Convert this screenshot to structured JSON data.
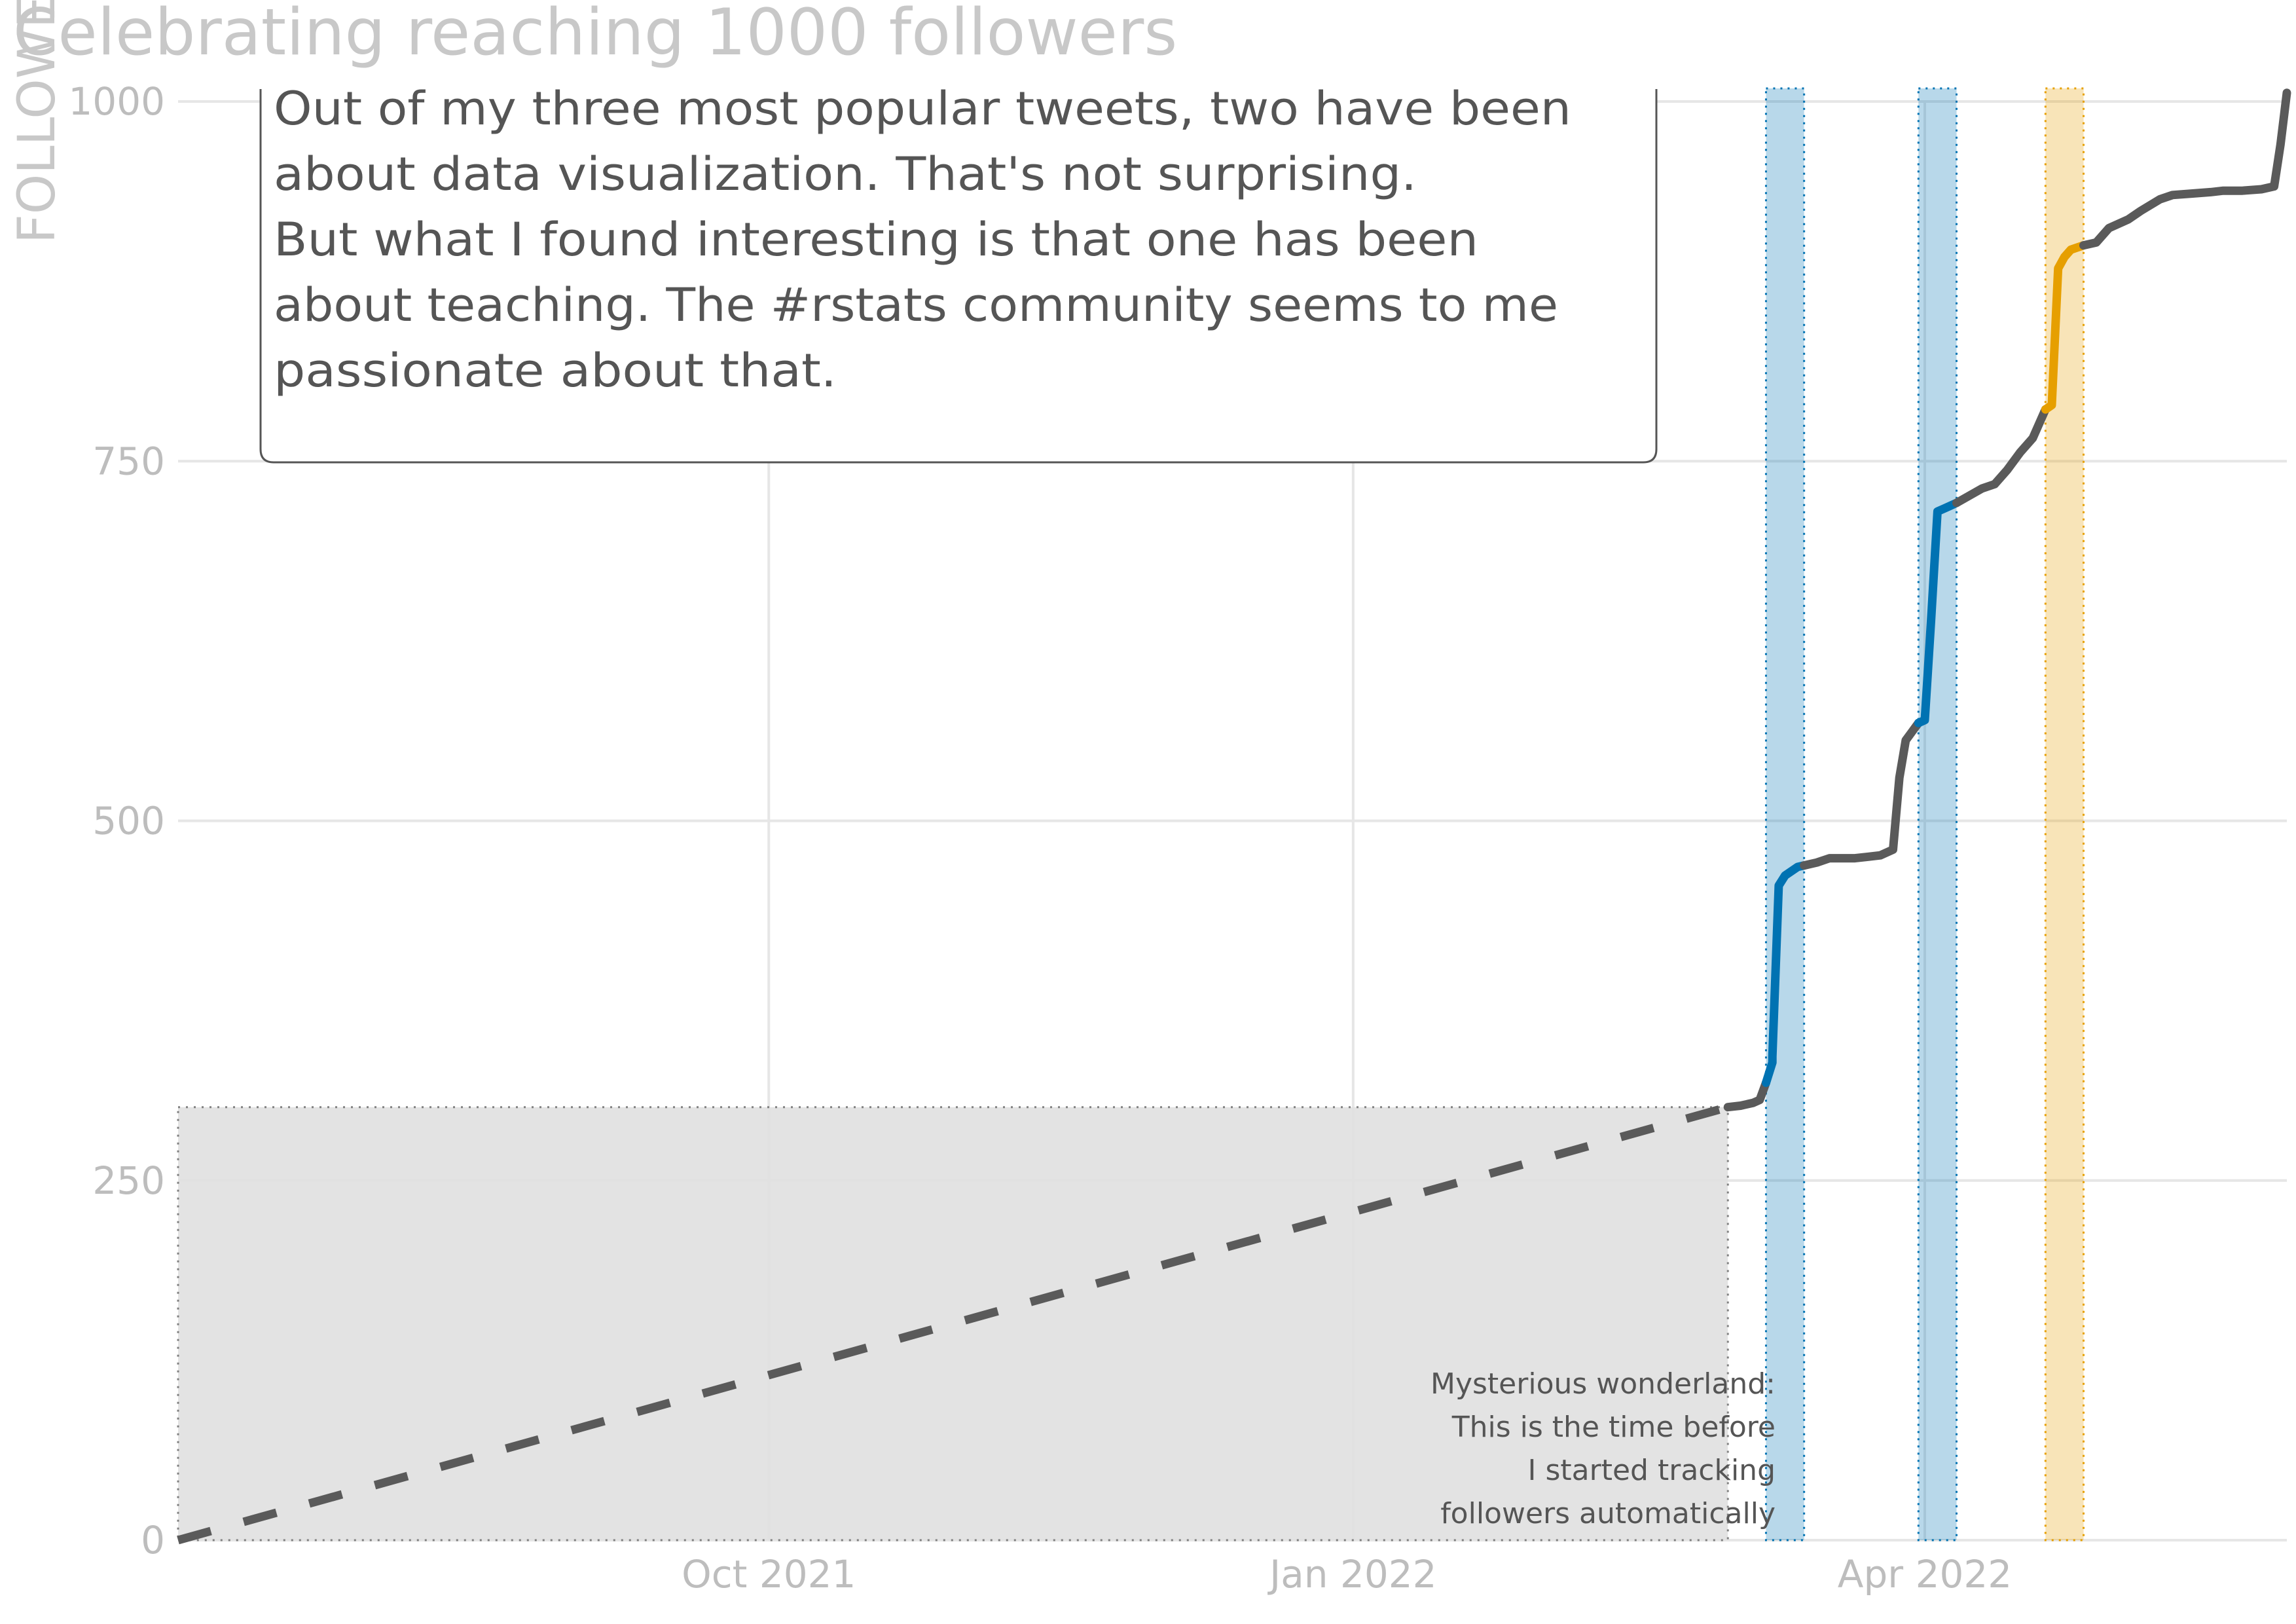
{
  "chart_data": {
    "type": "line",
    "title": "Celebrating reaching 1000 followers",
    "ylabel": "FOLLOWERS",
    "xlabel": "",
    "xlim": [
      "2021-06-30",
      "2022-05-28"
    ],
    "ylim": [
      0,
      1000
    ],
    "y_ticks": [
      0,
      250,
      500,
      750,
      1000
    ],
    "x_ticks": [
      {
        "date": "2021-10-01",
        "label": "Oct 2021"
      },
      {
        "date": "2022-01-01",
        "label": "Jan 2022"
      },
      {
        "date": "2022-04-01",
        "label": "Apr 2022"
      }
    ],
    "grid": true,
    "shaded_region": {
      "x_start": "2021-06-30",
      "x_end": "2022-03-01",
      "y_max": 301,
      "fill": "#e0e0e0",
      "annotation": [
        "Mysterious wonderland:",
        "This is the time before",
        "I started tracking",
        "followers automatically"
      ]
    },
    "highlight_bands": [
      {
        "x_start": "2022-03-07",
        "x_end": "2022-03-13",
        "color": "#0072B2"
      },
      {
        "x_start": "2022-03-31",
        "x_end": "2022-04-06",
        "color": "#0072B2"
      },
      {
        "x_start": "2022-04-20",
        "x_end": "2022-04-26",
        "color": "#E69F00"
      }
    ],
    "untracked_line": {
      "style": "dashed",
      "color": "#5a5a5a",
      "x": [
        "2021-06-30",
        "2022-03-01"
      ],
      "y": [
        0,
        301
      ]
    },
    "series": [
      {
        "color": "#5a5a5a",
        "x": [
          "2022-03-01",
          "2022-03-03",
          "2022-03-05",
          "2022-03-06",
          "2022-03-07"
        ],
        "y": [
          301,
          302,
          304,
          306,
          318
        ]
      },
      {
        "color": "#0072B2",
        "x": [
          "2022-03-07",
          "2022-03-08",
          "2022-03-08",
          "2022-03-09",
          "2022-03-10",
          "2022-03-11",
          "2022-03-12",
          "2022-03-13"
        ],
        "y": [
          318,
          332,
          336,
          455,
          462,
          465,
          468,
          469
        ]
      },
      {
        "color": "#5a5a5a",
        "x": [
          "2022-03-13",
          "2022-03-15",
          "2022-03-17",
          "2022-03-19",
          "2022-03-21",
          "2022-03-23",
          "2022-03-25",
          "2022-03-27",
          "2022-03-28",
          "2022-03-29",
          "2022-03-30",
          "2022-03-31"
        ],
        "y": [
          469,
          471,
          474,
          474,
          474,
          475,
          476,
          480,
          530,
          556,
          562,
          568
        ]
      },
      {
        "color": "#0072B2",
        "x": [
          "2022-03-31",
          "2022-04-01",
          "2022-04-02",
          "2022-04-03",
          "2022-04-04",
          "2022-04-05",
          "2022-04-06"
        ],
        "y": [
          568,
          570,
          640,
          715,
          717,
          719,
          721
        ]
      },
      {
        "color": "#5a5a5a",
        "x": [
          "2022-04-06",
          "2022-04-08",
          "2022-04-10",
          "2022-04-12",
          "2022-04-14",
          "2022-04-16",
          "2022-04-18",
          "2022-04-20"
        ],
        "y": [
          721,
          726,
          731,
          734,
          744,
          756,
          766,
          786
        ]
      },
      {
        "color": "#E69F00",
        "x": [
          "2022-04-20",
          "2022-04-21",
          "2022-04-22",
          "2022-04-23",
          "2022-04-24",
          "2022-04-26"
        ],
        "y": [
          786,
          789,
          884,
          892,
          897,
          900
        ]
      },
      {
        "color": "#5a5a5a",
        "x": [
          "2022-04-26",
          "2022-04-28",
          "2022-04-30",
          "2022-05-03",
          "2022-05-05",
          "2022-05-08",
          "2022-05-10",
          "2022-05-13",
          "2022-05-16",
          "2022-05-18",
          "2022-05-21",
          "2022-05-24",
          "2022-05-26",
          "2022-05-27",
          "2022-05-28"
        ],
        "y": [
          900,
          902,
          912,
          918,
          924,
          932,
          935,
          936,
          937,
          938,
          938,
          939,
          941,
          970,
          1006
        ]
      }
    ],
    "annotation_box": {
      "lines": [
        "Out of my three most popular tweets, two have been",
        "about data visualization. That's not surprising.",
        "But what I found interesting is that one has been",
        "about teaching. The #rstats community seems to me",
        "passionate about that."
      ]
    }
  }
}
